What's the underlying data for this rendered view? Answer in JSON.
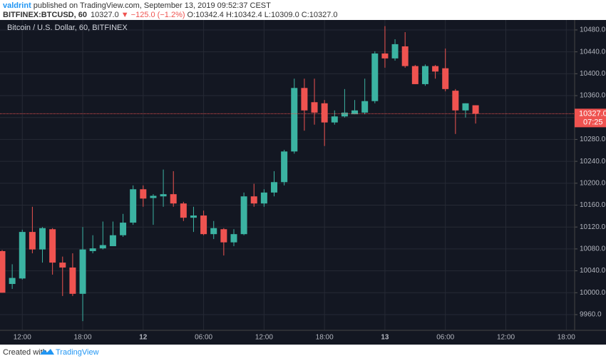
{
  "header": {
    "author": "valdrint",
    "published": " published on TradingView.com, September 13, 2019 09:52:37 CEST",
    "symbol": "BITFINEX:BTCUSD, 60",
    "price": "10327.0",
    "change": "▼ −125.0 (−1.2%)",
    "ohlc": "O:10342.4 H:10342.4 L:10309.0 C:10327.0"
  },
  "chart_data": {
    "type": "candlestick",
    "title": "Bitcoin / U.S. Dollar, 60, BITFINEX",
    "categories": [
      null,
      null,
      "12:00",
      null,
      null,
      null,
      null,
      null,
      "18:00",
      null,
      null,
      null,
      null,
      null,
      "12",
      null,
      null,
      null,
      null,
      null,
      "06:00",
      null,
      null,
      null,
      null,
      null,
      "12:00",
      null,
      null,
      null,
      null,
      null,
      "18:00",
      null,
      null,
      null,
      null,
      null,
      "13",
      null,
      null,
      null,
      null,
      null,
      "06:00",
      null,
      null,
      null,
      null,
      null,
      "12:00",
      null,
      null,
      null,
      null,
      null,
      "18:00"
    ],
    "open": [
      10076,
      10016,
      10026,
      10111,
      10079,
      10116,
      10055,
      10046,
      9998,
      10076,
      10081,
      10085,
      10105,
      10128,
      10189,
      10173,
      10176,
      10180,
      10163,
      10137,
      10141,
      10107,
      10116,
      10092,
      10107,
      10176,
      10163,
      10183,
      10202,
      10258,
      10374,
      10348,
      10346,
      10311,
      10322,
      10326,
      10329,
      10350,
      10437,
      10428,
      10450,
      10414,
      10381,
      10414,
      10410,
      10369,
      10333,
      10342.4,
      null,
      null,
      null,
      null,
      null,
      null,
      null,
      null,
      null
    ],
    "high": [
      10078,
      10052,
      10115,
      10157,
      10120,
      10118,
      10066,
      10072,
      10120,
      10105,
      10130,
      10130,
      10144,
      10196,
      10196,
      10180,
      10225,
      10222,
      10166,
      10157,
      10150,
      10131,
      10118,
      10116,
      10183,
      10199,
      10189,
      10222,
      10261,
      10391,
      10391,
      10391,
      10352,
      10333,
      10372,
      10352,
      10391,
      10441,
      10487,
      10463,
      10476,
      10416,
      10417,
      10416,
      10446,
      10372,
      10346,
      10342.4,
      null,
      null,
      null,
      null,
      null,
      null,
      null,
      null,
      null
    ],
    "low": [
      10000,
      10007,
      10024,
      10072,
      10055,
      10033,
      9994,
      9994,
      9948,
      10072,
      10079,
      10085,
      10102,
      10124,
      10157,
      10124,
      10157,
      10157,
      10131,
      10111,
      10105,
      10098,
      10068,
      10085,
      10105,
      10157,
      10157,
      10176,
      10196,
      10254,
      10296,
      10307,
      10268,
      10307,
      10320,
      10326,
      10326,
      10346,
      10411,
      10424,
      10411,
      10381,
      10378,
      10391,
      10368,
      10290,
      10320,
      10309,
      null,
      null,
      null,
      null,
      null,
      null,
      null,
      null,
      null
    ],
    "close": [
      10000,
      10027,
      10111,
      10079,
      10118,
      10055,
      10046,
      9998,
      10079,
      10081,
      10087,
      10105,
      10128,
      10189,
      10172,
      10177,
      10180,
      10163,
      10137,
      10141,
      10107,
      10118,
      10092,
      10107,
      10176,
      10163,
      10183,
      10202,
      10258,
      10374,
      10333,
      10329,
      10311,
      10322,
      10329,
      10333,
      10350,
      10437,
      10428,
      10454,
      10414,
      10381,
      10414,
      10404,
      10372,
      10333,
      10346,
      10327,
      null,
      null,
      null,
      null,
      null,
      null,
      null,
      null,
      null
    ],
    "up_color": "#3bb3a2",
    "down_color": "#ef5350",
    "ylim": [
      9931.3,
      10498.2
    ],
    "yticks": [
      {
        "value": 9960,
        "label": "9960.0"
      },
      {
        "value": 10000,
        "label": "10000.0"
      },
      {
        "value": 10040,
        "label": "10040.0"
      },
      {
        "value": 10080,
        "label": "10080.0"
      },
      {
        "value": 10120,
        "label": "10120.0"
      },
      {
        "value": 10160,
        "label": "10160.0"
      },
      {
        "value": 10200,
        "label": "10200.0"
      },
      {
        "value": 10240,
        "label": "10240.0"
      },
      {
        "value": 10280,
        "label": "10280.0"
      },
      {
        "value": 10320,
        "label": "10320.0"
      },
      {
        "value": 10360,
        "label": "10360.0"
      },
      {
        "value": 10400,
        "label": "10400.0"
      },
      {
        "value": 10440,
        "label": "10440.0"
      },
      {
        "value": 10480,
        "label": "10480.0"
      }
    ],
    "grid": true,
    "last_price": {
      "value": 10327,
      "label": "10327.0"
    },
    "countdown": "07:25"
  },
  "footer": {
    "created": "Created with",
    "brand": "TradingView"
  }
}
